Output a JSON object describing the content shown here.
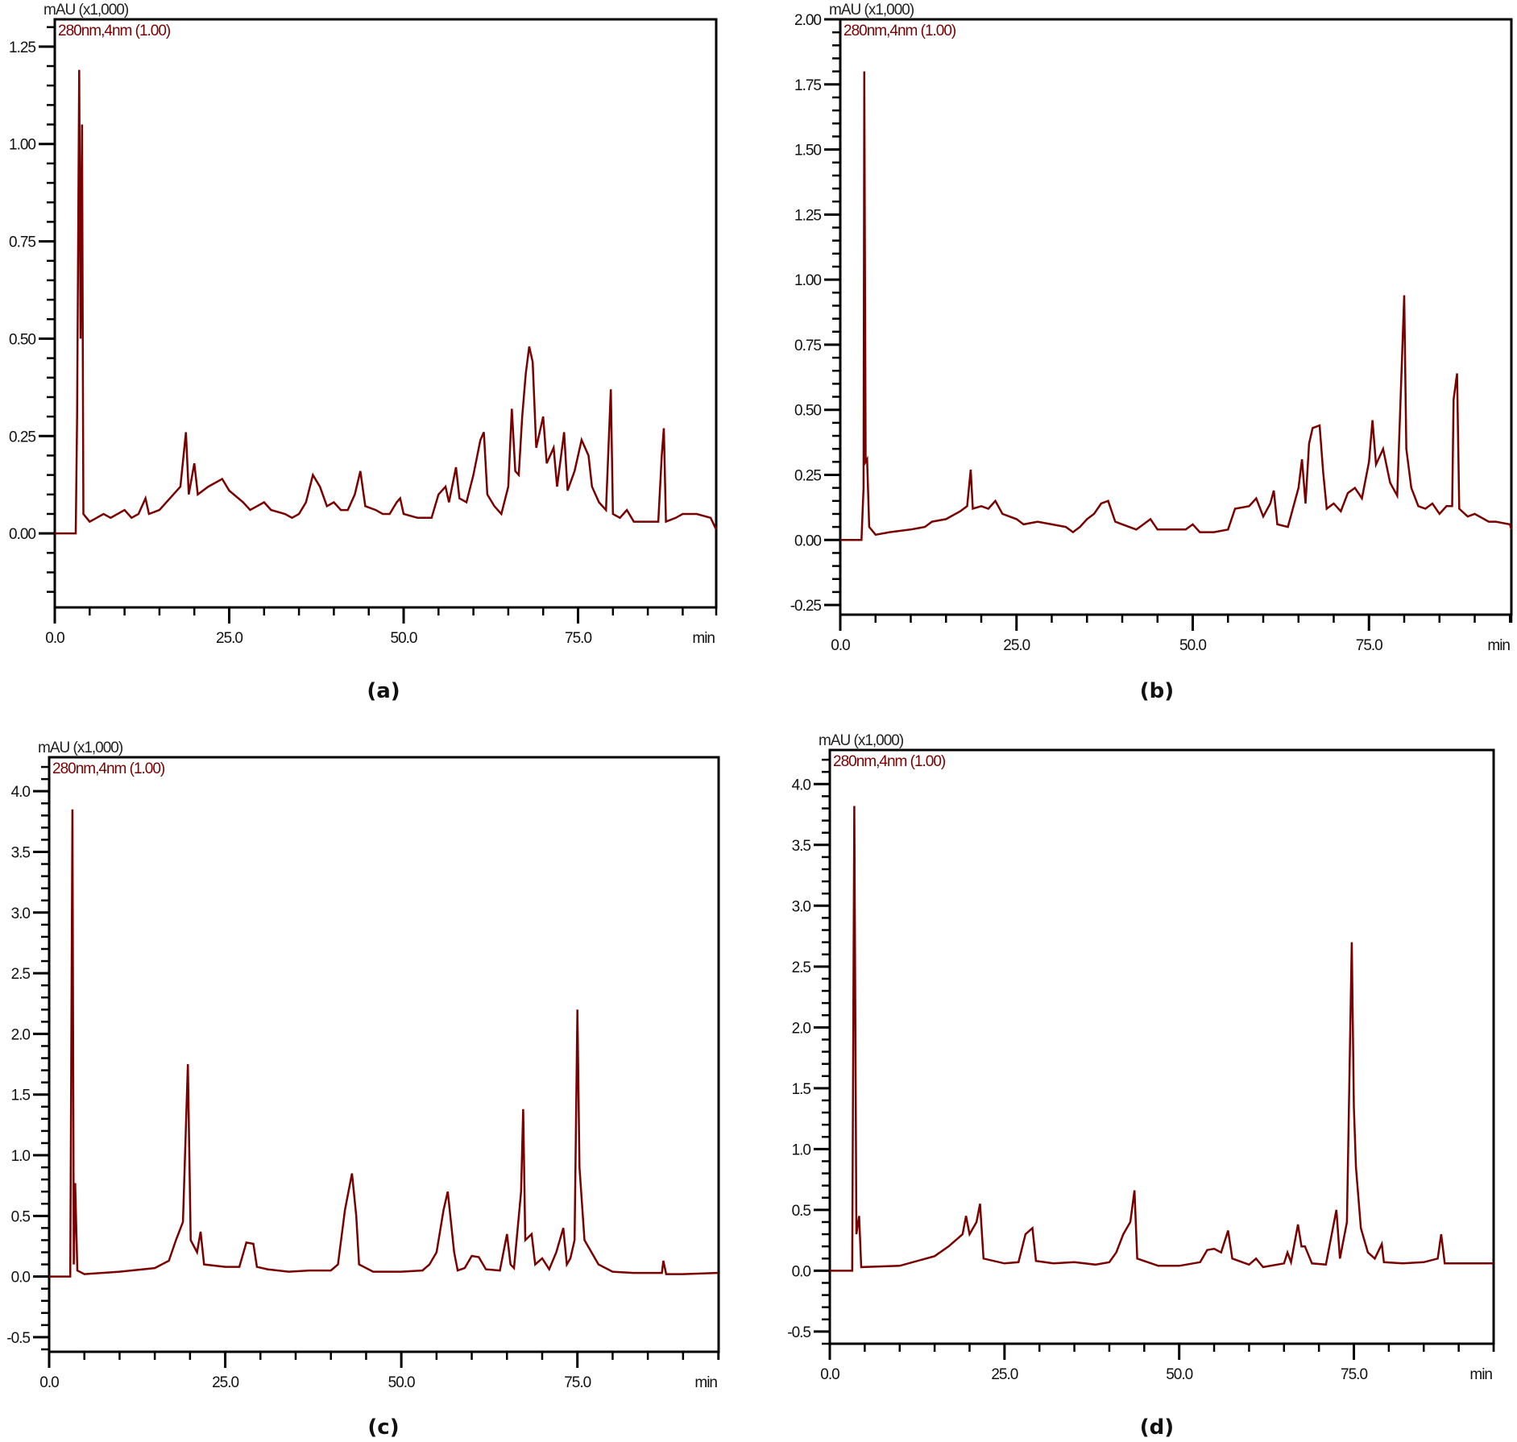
{
  "trace_color": "#7a0000",
  "chart_data": [
    {
      "type": "line",
      "caption": "(a)",
      "ylabel": "mAU (x1,000)",
      "channel": "280nm,4nm (1.00)",
      "xunit": "min",
      "xlim": [
        0,
        94.8
      ],
      "ylim": [
        -0.19,
        1.32
      ],
      "xticks": [
        0,
        25,
        50,
        75
      ],
      "xtick_labels": [
        "0.0",
        "25.0",
        "50.0",
        "75.0"
      ],
      "xminor": 5,
      "yticks": [
        0,
        0.25,
        0.5,
        0.75,
        1.0,
        1.25
      ],
      "ytick_labels": [
        "0.00",
        "0.25",
        "0.50",
        "0.75",
        "1.00",
        "1.25"
      ],
      "yminor": 0.05,
      "points": [
        [
          0,
          0
        ],
        [
          3.0,
          0
        ],
        [
          3.2,
          0.3
        ],
        [
          3.5,
          1.19
        ],
        [
          3.7,
          0.5
        ],
        [
          3.9,
          1.05
        ],
        [
          4.1,
          0.05
        ],
        [
          5,
          0.03
        ],
        [
          6,
          0.04
        ],
        [
          7,
          0.05
        ],
        [
          8,
          0.04
        ],
        [
          10,
          0.06
        ],
        [
          11,
          0.04
        ],
        [
          12,
          0.05
        ],
        [
          13,
          0.09
        ],
        [
          13.5,
          0.05
        ],
        [
          15,
          0.06
        ],
        [
          17,
          0.1
        ],
        [
          18,
          0.12
        ],
        [
          18.8,
          0.26
        ],
        [
          19.2,
          0.1
        ],
        [
          20,
          0.18
        ],
        [
          20.5,
          0.1
        ],
        [
          22,
          0.12
        ],
        [
          24,
          0.14
        ],
        [
          25,
          0.11
        ],
        [
          27,
          0.08
        ],
        [
          28,
          0.06
        ],
        [
          30,
          0.08
        ],
        [
          31,
          0.06
        ],
        [
          33,
          0.05
        ],
        [
          34,
          0.04
        ],
        [
          35,
          0.05
        ],
        [
          36,
          0.08
        ],
        [
          37,
          0.15
        ],
        [
          38,
          0.12
        ],
        [
          39,
          0.07
        ],
        [
          40,
          0.08
        ],
        [
          41,
          0.06
        ],
        [
          42,
          0.06
        ],
        [
          43,
          0.1
        ],
        [
          43.8,
          0.16
        ],
        [
          44.5,
          0.07
        ],
        [
          46,
          0.06
        ],
        [
          47,
          0.05
        ],
        [
          48,
          0.05
        ],
        [
          49,
          0.08
        ],
        [
          49.5,
          0.09
        ],
        [
          50,
          0.05
        ],
        [
          52,
          0.04
        ],
        [
          54,
          0.04
        ],
        [
          55,
          0.1
        ],
        [
          56,
          0.12
        ],
        [
          56.5,
          0.08
        ],
        [
          57.5,
          0.17
        ],
        [
          58,
          0.09
        ],
        [
          59,
          0.08
        ],
        [
          60,
          0.15
        ],
        [
          61,
          0.24
        ],
        [
          61.5,
          0.26
        ],
        [
          62,
          0.1
        ],
        [
          63,
          0.07
        ],
        [
          64,
          0.05
        ],
        [
          65,
          0.12
        ],
        [
          65.5,
          0.32
        ],
        [
          66,
          0.16
        ],
        [
          66.5,
          0.15
        ],
        [
          67,
          0.3
        ],
        [
          67.5,
          0.41
        ],
        [
          68,
          0.48
        ],
        [
          68.5,
          0.44
        ],
        [
          69,
          0.22
        ],
        [
          70,
          0.3
        ],
        [
          70.5,
          0.18
        ],
        [
          71.5,
          0.22
        ],
        [
          72,
          0.12
        ],
        [
          73,
          0.26
        ],
        [
          73.5,
          0.11
        ],
        [
          74.5,
          0.16
        ],
        [
          75.5,
          0.24
        ],
        [
          76.5,
          0.2
        ],
        [
          77,
          0.12
        ],
        [
          78,
          0.08
        ],
        [
          79,
          0.06
        ],
        [
          79.7,
          0.37
        ],
        [
          80,
          0.05
        ],
        [
          81,
          0.04
        ],
        [
          82,
          0.06
        ],
        [
          83,
          0.03
        ],
        [
          84,
          0.03
        ],
        [
          86.5,
          0.03
        ],
        [
          87,
          0.2
        ],
        [
          87.3,
          0.27
        ],
        [
          87.6,
          0.03
        ],
        [
          89,
          0.04
        ],
        [
          90,
          0.05
        ],
        [
          92,
          0.05
        ],
        [
          94,
          0.04
        ],
        [
          94.8,
          0.01
        ]
      ]
    },
    {
      "type": "line",
      "caption": "(b)",
      "ylabel": "mAU (x1,000)",
      "channel": "280nm,4nm (1.00)",
      "xunit": "min",
      "xlim": [
        0,
        95.2
      ],
      "ylim": [
        -0.287,
        2.0
      ],
      "xticks": [
        0,
        25,
        50,
        75
      ],
      "xtick_labels": [
        "0.0",
        "25.0",
        "50.0",
        "75.0"
      ],
      "xminor": 5,
      "yticks": [
        -0.25,
        0,
        0.25,
        0.5,
        0.75,
        1.0,
        1.25,
        1.5,
        1.75,
        2.0
      ],
      "ytick_labels": [
        "-0.25",
        "0.00",
        "0.25",
        "0.50",
        "0.75",
        "1.00",
        "1.25",
        "1.50",
        "1.75",
        "2.00"
      ],
      "yminor": 0.05,
      "points": [
        [
          0,
          0
        ],
        [
          3.0,
          0
        ],
        [
          3.3,
          0.2
        ],
        [
          3.4,
          1.8
        ],
        [
          3.6,
          0.3
        ],
        [
          3.8,
          0.31
        ],
        [
          4.1,
          0.05
        ],
        [
          5,
          0.02
        ],
        [
          7,
          0.03
        ],
        [
          10,
          0.04
        ],
        [
          12,
          0.05
        ],
        [
          13,
          0.07
        ],
        [
          15,
          0.08
        ],
        [
          17,
          0.11
        ],
        [
          18,
          0.13
        ],
        [
          18.5,
          0.27
        ],
        [
          18.8,
          0.12
        ],
        [
          20,
          0.13
        ],
        [
          21,
          0.12
        ],
        [
          22,
          0.15
        ],
        [
          23,
          0.1
        ],
        [
          25,
          0.08
        ],
        [
          26,
          0.06
        ],
        [
          28,
          0.07
        ],
        [
          30,
          0.06
        ],
        [
          32,
          0.05
        ],
        [
          33,
          0.03
        ],
        [
          34,
          0.05
        ],
        [
          35,
          0.08
        ],
        [
          36,
          0.1
        ],
        [
          37,
          0.14
        ],
        [
          38,
          0.15
        ],
        [
          39,
          0.07
        ],
        [
          40,
          0.06
        ],
        [
          42,
          0.04
        ],
        [
          43,
          0.06
        ],
        [
          44,
          0.08
        ],
        [
          45,
          0.04
        ],
        [
          47,
          0.04
        ],
        [
          49,
          0.04
        ],
        [
          50,
          0.06
        ],
        [
          51,
          0.03
        ],
        [
          53,
          0.03
        ],
        [
          55,
          0.04
        ],
        [
          56,
          0.12
        ],
        [
          58,
          0.13
        ],
        [
          59,
          0.16
        ],
        [
          60,
          0.09
        ],
        [
          61,
          0.14
        ],
        [
          61.5,
          0.19
        ],
        [
          62,
          0.06
        ],
        [
          63.5,
          0.05
        ],
        [
          64,
          0.1
        ],
        [
          65,
          0.2
        ],
        [
          65.5,
          0.31
        ],
        [
          66,
          0.14
        ],
        [
          66.5,
          0.37
        ],
        [
          67,
          0.43
        ],
        [
          68,
          0.44
        ],
        [
          68.5,
          0.26
        ],
        [
          69,
          0.12
        ],
        [
          70,
          0.14
        ],
        [
          71,
          0.11
        ],
        [
          72,
          0.18
        ],
        [
          73,
          0.2
        ],
        [
          74,
          0.16
        ],
        [
          75,
          0.3
        ],
        [
          75.5,
          0.46
        ],
        [
          76,
          0.29
        ],
        [
          77,
          0.35
        ],
        [
          78,
          0.22
        ],
        [
          79,
          0.17
        ],
        [
          80,
          0.94
        ],
        [
          80.3,
          0.35
        ],
        [
          81,
          0.2
        ],
        [
          82,
          0.13
        ],
        [
          83,
          0.12
        ],
        [
          84,
          0.14
        ],
        [
          85,
          0.1
        ],
        [
          86,
          0.13
        ],
        [
          86.8,
          0.13
        ],
        [
          87,
          0.54
        ],
        [
          87.5,
          0.64
        ],
        [
          87.8,
          0.12
        ],
        [
          89,
          0.09
        ],
        [
          90,
          0.1
        ],
        [
          92,
          0.07
        ],
        [
          93,
          0.07
        ],
        [
          95,
          0.06
        ],
        [
          95.2,
          0.04
        ]
      ]
    },
    {
      "type": "line",
      "caption": "(c)",
      "ylabel": "mAU (x1,000)",
      "channel": "280nm,4nm (1.00)",
      "xunit": "min",
      "xlim": [
        0,
        95.05
      ],
      "ylim": [
        -0.62,
        4.28
      ],
      "xticks": [
        0,
        25,
        50,
        75
      ],
      "xtick_labels": [
        "0.0",
        "25.0",
        "50.0",
        "75.0"
      ],
      "xminor": 5,
      "yticks": [
        -0.5,
        0,
        0.5,
        1.0,
        1.5,
        2.0,
        2.5,
        3.0,
        3.5,
        4.0
      ],
      "ytick_labels": [
        "-0.5",
        "0.0",
        "0.5",
        "1.0",
        "1.5",
        "2.0",
        "2.5",
        "3.0",
        "3.5",
        "4.0"
      ],
      "yminor": 0.1,
      "points": [
        [
          0,
          0
        ],
        [
          3,
          0
        ],
        [
          3.3,
          3.85
        ],
        [
          3.5,
          0.1
        ],
        [
          3.7,
          0.77
        ],
        [
          4.0,
          0.05
        ],
        [
          5,
          0.02
        ],
        [
          10,
          0.04
        ],
        [
          15,
          0.07
        ],
        [
          17,
          0.13
        ],
        [
          18,
          0.3
        ],
        [
          19,
          0.45
        ],
        [
          19.7,
          1.75
        ],
        [
          20.1,
          0.3
        ],
        [
          21,
          0.2
        ],
        [
          21.5,
          0.37
        ],
        [
          22,
          0.1
        ],
        [
          25,
          0.08
        ],
        [
          27,
          0.08
        ],
        [
          28,
          0.28
        ],
        [
          29,
          0.27
        ],
        [
          29.5,
          0.08
        ],
        [
          31,
          0.06
        ],
        [
          34,
          0.04
        ],
        [
          37,
          0.05
        ],
        [
          40,
          0.05
        ],
        [
          41,
          0.1
        ],
        [
          42,
          0.55
        ],
        [
          43,
          0.85
        ],
        [
          43.6,
          0.5
        ],
        [
          44,
          0.1
        ],
        [
          46,
          0.04
        ],
        [
          50,
          0.04
        ],
        [
          53,
          0.05
        ],
        [
          54,
          0.1
        ],
        [
          55,
          0.2
        ],
        [
          56,
          0.55
        ],
        [
          56.6,
          0.7
        ],
        [
          57.5,
          0.2
        ],
        [
          58,
          0.05
        ],
        [
          59,
          0.07
        ],
        [
          60,
          0.17
        ],
        [
          61,
          0.16
        ],
        [
          62,
          0.06
        ],
        [
          64,
          0.05
        ],
        [
          65,
          0.35
        ],
        [
          65.5,
          0.1
        ],
        [
          66,
          0.07
        ],
        [
          67,
          0.7
        ],
        [
          67.3,
          1.38
        ],
        [
          67.6,
          0.3
        ],
        [
          68.5,
          0.35
        ],
        [
          69,
          0.1
        ],
        [
          70,
          0.15
        ],
        [
          71,
          0.06
        ],
        [
          72,
          0.2
        ],
        [
          73,
          0.4
        ],
        [
          73.5,
          0.1
        ],
        [
          74,
          0.15
        ],
        [
          74.6,
          0.3
        ],
        [
          75,
          2.2
        ],
        [
          75.3,
          0.9
        ],
        [
          76,
          0.3
        ],
        [
          77,
          0.2
        ],
        [
          78,
          0.1
        ],
        [
          80,
          0.04
        ],
        [
          83,
          0.03
        ],
        [
          87,
          0.03
        ],
        [
          87.2,
          0.13
        ],
        [
          87.6,
          0.02
        ],
        [
          90,
          0.02
        ],
        [
          95,
          0.03
        ]
      ]
    },
    {
      "type": "line",
      "caption": "(d)",
      "ylabel": "mAU (x1,000)",
      "channel": "280nm,4nm (1.00)",
      "xunit": "min",
      "xlim": [
        0,
        95.0
      ],
      "ylim": [
        -0.6,
        4.28
      ],
      "xticks": [
        0,
        25,
        50,
        75
      ],
      "xtick_labels": [
        "0.0",
        "25.0",
        "50.0",
        "75.0"
      ],
      "xminor": 5,
      "yticks": [
        -0.5,
        0,
        0.5,
        1.0,
        1.5,
        2.0,
        2.5,
        3.0,
        3.5,
        4.0
      ],
      "ytick_labels": [
        "-0.5",
        "0.0",
        "0.5",
        "1.0",
        "1.5",
        "2.0",
        "2.5",
        "3.0",
        "3.5",
        "4.0"
      ],
      "yminor": 0.1,
      "points": [
        [
          0,
          0
        ],
        [
          3.2,
          0
        ],
        [
          3.5,
          3.82
        ],
        [
          3.8,
          0.3
        ],
        [
          4.2,
          0.45
        ],
        [
          4.5,
          0.03
        ],
        [
          10,
          0.04
        ],
        [
          15,
          0.12
        ],
        [
          17,
          0.2
        ],
        [
          19,
          0.3
        ],
        [
          19.5,
          0.45
        ],
        [
          20,
          0.3
        ],
        [
          21,
          0.4
        ],
        [
          21.5,
          0.55
        ],
        [
          22,
          0.1
        ],
        [
          25,
          0.06
        ],
        [
          27,
          0.07
        ],
        [
          28,
          0.3
        ],
        [
          29,
          0.35
        ],
        [
          29.5,
          0.08
        ],
        [
          32,
          0.06
        ],
        [
          35,
          0.07
        ],
        [
          38,
          0.05
        ],
        [
          40,
          0.07
        ],
        [
          41,
          0.15
        ],
        [
          42,
          0.3
        ],
        [
          43,
          0.4
        ],
        [
          43.6,
          0.66
        ],
        [
          44,
          0.1
        ],
        [
          47,
          0.04
        ],
        [
          50,
          0.04
        ],
        [
          53,
          0.07
        ],
        [
          54,
          0.17
        ],
        [
          55,
          0.18
        ],
        [
          56,
          0.15
        ],
        [
          57,
          0.33
        ],
        [
          57.6,
          0.1
        ],
        [
          60,
          0.05
        ],
        [
          61,
          0.1
        ],
        [
          62,
          0.03
        ],
        [
          65,
          0.06
        ],
        [
          65.5,
          0.15
        ],
        [
          66,
          0.07
        ],
        [
          67,
          0.38
        ],
        [
          67.5,
          0.2
        ],
        [
          68,
          0.2
        ],
        [
          69,
          0.06
        ],
        [
          71,
          0.05
        ],
        [
          72.5,
          0.5
        ],
        [
          73,
          0.1
        ],
        [
          74,
          0.4
        ],
        [
          74.7,
          2.7
        ],
        [
          75,
          1.35
        ],
        [
          75.3,
          0.85
        ],
        [
          76,
          0.35
        ],
        [
          77,
          0.15
        ],
        [
          78,
          0.1
        ],
        [
          79,
          0.22
        ],
        [
          79.3,
          0.07
        ],
        [
          82,
          0.06
        ],
        [
          85,
          0.07
        ],
        [
          87,
          0.1
        ],
        [
          87.5,
          0.3
        ],
        [
          88,
          0.06
        ],
        [
          90,
          0.06
        ],
        [
          95,
          0.06
        ]
      ]
    }
  ]
}
